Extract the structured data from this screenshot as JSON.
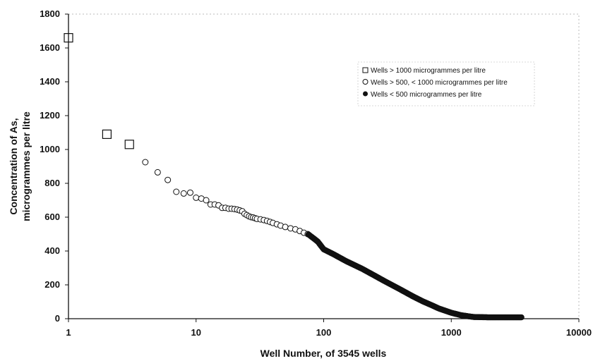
{
  "chart_data": {
    "type": "scatter",
    "x_scale": "log",
    "xlim": [
      1,
      10000
    ],
    "ylim": [
      0,
      1800
    ],
    "x_ticks": [
      "1",
      "10",
      "100",
      "1000",
      "10000"
    ],
    "y_ticks": [
      "0",
      "200",
      "400",
      "600",
      "800",
      "1000",
      "1200",
      "1400",
      "1600",
      "1800"
    ],
    "xlabel": "Well Number, of 3545 wells",
    "ylabel_lines": [
      "Concentration of As,",
      "microgrammes per litre"
    ],
    "grid": false,
    "legend_position": "upper-right",
    "series": [
      {
        "name": "Wells > 1000 microgrammes per litre",
        "marker": "open-square",
        "points": [
          [
            1,
            1660
          ],
          [
            2,
            1090
          ],
          [
            3,
            1030
          ]
        ]
      },
      {
        "name": "Wells > 500, < 1000 microgrammes per litre",
        "marker": "open-circle",
        "points": [
          [
            4,
            925
          ],
          [
            5,
            865
          ],
          [
            6,
            820
          ],
          [
            7,
            750
          ],
          [
            8,
            740
          ],
          [
            9,
            745
          ],
          [
            10,
            715
          ],
          [
            11,
            710
          ],
          [
            12,
            700
          ],
          [
            13,
            675
          ],
          [
            14,
            675
          ],
          [
            15,
            670
          ],
          [
            16,
            655
          ],
          [
            17,
            655
          ],
          [
            18,
            650
          ],
          [
            19,
            650
          ],
          [
            20,
            648
          ],
          [
            21,
            645
          ],
          [
            22,
            640
          ],
          [
            23,
            635
          ],
          [
            24,
            620
          ],
          [
            25,
            612
          ],
          [
            26,
            605
          ],
          [
            27,
            600
          ],
          [
            28,
            598
          ],
          [
            29,
            594
          ],
          [
            30,
            590
          ],
          [
            32,
            587
          ],
          [
            34,
            583
          ],
          [
            36,
            578
          ],
          [
            38,
            572
          ],
          [
            40,
            566
          ],
          [
            43,
            558
          ],
          [
            46,
            550
          ],
          [
            50,
            542
          ],
          [
            55,
            534
          ],
          [
            60,
            528
          ],
          [
            65,
            518
          ],
          [
            70,
            508
          ],
          [
            75,
            500
          ]
        ]
      },
      {
        "name": "Wells < 500 microgrammes per litre",
        "marker": "filled-circle",
        "curve": [
          [
            76,
            498
          ],
          [
            80,
            485
          ],
          [
            85,
            470
          ],
          [
            90,
            455
          ],
          [
            100,
            410
          ],
          [
            120,
            380
          ],
          [
            150,
            340
          ],
          [
            200,
            295
          ],
          [
            250,
            255
          ],
          [
            300,
            222
          ],
          [
            400,
            172
          ],
          [
            500,
            132
          ],
          [
            600,
            102
          ],
          [
            700,
            80
          ],
          [
            800,
            60
          ],
          [
            1000,
            35
          ],
          [
            1200,
            20
          ],
          [
            1500,
            10
          ],
          [
            2000,
            8
          ],
          [
            3545,
            8
          ]
        ]
      }
    ]
  }
}
